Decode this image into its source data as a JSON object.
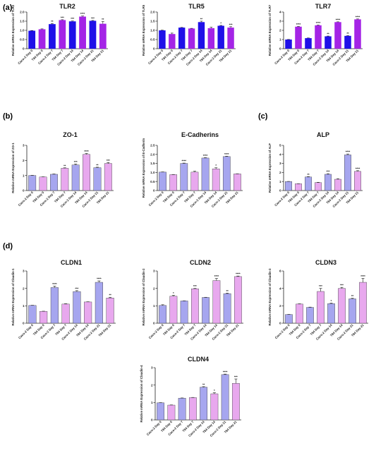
{
  "panel_labels": [
    "(a)",
    "(b)",
    "(c)",
    "(d)"
  ],
  "colors": {
    "tlr_caco": "#1f10e8",
    "tlr_t84": "#a424e6",
    "tj_caco": "#a6a6ef",
    "tj_t84": "#e8a8ee",
    "axis": "#222222"
  },
  "chart_data": [
    {
      "type": "bar",
      "panel": "(a)",
      "title": "TLR2",
      "ylabel": "Relative mRNA Expression of TLR2",
      "ylim": [
        0,
        2.0
      ],
      "yticks": [
        "0",
        "0.5",
        "1.0",
        "1.5",
        "2.0"
      ],
      "categories": [
        "Caco-2 Day 0",
        "T84 Day 0",
        "Caco-2 Day 7",
        "T84 Day 7",
        "Caco-2 Day 14",
        "T84 Day 14",
        "Caco-2 Day 21",
        "T84 Day 21"
      ],
      "values": [
        0.98,
        1.06,
        1.34,
        1.56,
        1.49,
        1.75,
        1.52,
        1.36
      ],
      "errors": [
        0.01,
        0.02,
        0.03,
        0.02,
        0.02,
        0.03,
        0.02,
        0.12
      ],
      "significance": [
        "",
        "",
        "**",
        "***",
        "***",
        "****",
        "***",
        "**"
      ],
      "palette": "tlr"
    },
    {
      "type": "bar",
      "panel": "(a)",
      "title": "TLR5",
      "ylabel": "Relative mRNA Expression of TLR5",
      "ylim": [
        0,
        2.0
      ],
      "yticks": [
        "0",
        "0.5",
        "1.0",
        "1.5",
        "2.0"
      ],
      "categories": [
        "Caco-2 Day 0",
        "T84 Day 0",
        "Caco-2 Day 7",
        "T84 Day 7",
        "Caco-2 Day 14",
        "T84 Day 14",
        "Caco-2 Day 21",
        "T84 Day 21"
      ],
      "values": [
        1.0,
        0.8,
        1.15,
        1.1,
        1.45,
        1.12,
        1.25,
        1.15
      ],
      "errors": [
        0.01,
        0.05,
        0.01,
        0.01,
        0.05,
        0.05,
        0.02,
        0.05
      ],
      "significance": [
        "",
        "",
        "",
        "",
        "**",
        "",
        "*",
        "***"
      ],
      "palette": "tlr"
    },
    {
      "type": "bar",
      "panel": "(a)",
      "title": "TLR7",
      "ylabel": "Relative mRNA Expression of TLR7",
      "ylim": [
        0,
        4
      ],
      "yticks": [
        "0",
        "1",
        "2",
        "3",
        "4"
      ],
      "categories": [
        "Caco-2 Day 0",
        "T84 Day 0",
        "Caco-2 Day 7",
        "T84 Day 7",
        "Caco-2 Day 14",
        "T84 Day 14",
        "Caco-2 Day 21",
        "T84 Day 21"
      ],
      "values": [
        1.0,
        2.4,
        1.15,
        2.55,
        1.35,
        2.9,
        1.4,
        3.2
      ],
      "errors": [
        0.01,
        0.03,
        0.02,
        0.03,
        0.03,
        0.03,
        0.03,
        0.04
      ],
      "significance": [
        "",
        "****",
        "",
        "****",
        "**",
        "****",
        "**",
        "****"
      ],
      "palette": "tlr"
    },
    {
      "type": "bar",
      "panel": "(b)",
      "title": "ZO-1",
      "ylabel": "Relative mRNA Expression of ZO-1",
      "ylim": [
        0,
        3
      ],
      "yticks": [
        "0",
        "1",
        "2",
        "3"
      ],
      "categories": [
        "Caco-2 Day 0",
        "T84 Day 0",
        "Caco-2 Day 7",
        "T84 Day 7",
        "Caco-2 Day 14",
        "T84 Day 14",
        "Caco-2 Day 21",
        "T84 Day 21"
      ],
      "values": [
        1.0,
        0.9,
        1.08,
        1.48,
        1.7,
        2.4,
        1.52,
        1.8
      ],
      "errors": [
        0.01,
        0.01,
        0.02,
        0.03,
        0.06,
        0.06,
        0.03,
        0.06
      ],
      "significance": [
        "",
        "",
        "",
        "**",
        "***",
        "****",
        "**",
        "***"
      ],
      "palette": "tj"
    },
    {
      "type": "bar",
      "panel": "(b)",
      "title": "E-Cadherins",
      "ylabel": "Relative mRNA Expression of E-Cadherin",
      "ylim": [
        0,
        2.5
      ],
      "yticks": [
        "0",
        "0.5",
        "1.0",
        "1.5",
        "2.0",
        "2.5"
      ],
      "categories": [
        "Caco-2 Day 0",
        "T84 Day 0",
        "Caco-2 Day 7",
        "T84 Day 7",
        "Caco-2 Day 14",
        "T84 Day 14",
        "Caco-2 Day 21",
        "T84 Day 21"
      ],
      "values": [
        1.02,
        0.88,
        1.5,
        1.02,
        1.8,
        1.2,
        1.88,
        0.92
      ],
      "errors": [
        0.01,
        0.01,
        0.02,
        0.05,
        0.02,
        0.06,
        0.02,
        0.01
      ],
      "significance": [
        "",
        "",
        "****",
        "",
        "****",
        "*",
        "****",
        ""
      ],
      "palette": "tj"
    },
    {
      "type": "bar",
      "panel": "(c)",
      "title": "ALP",
      "ylabel": "Relative mRNA Expression of ALP",
      "ylim": [
        0,
        5
      ],
      "yticks": [
        "0",
        "1",
        "2",
        "3",
        "4",
        "5"
      ],
      "categories": [
        "Caco-2 Day 0",
        "T84 Day 0",
        "Caco-2 Day 7",
        "T84 Day 7",
        "Caco-2 Day 14",
        "T84 Day 14",
        "Caco-2 Day 21",
        "T84 Day 21"
      ],
      "values": [
        1.0,
        0.75,
        1.5,
        0.88,
        1.8,
        1.25,
        3.95,
        2.12
      ],
      "errors": [
        0.01,
        0.01,
        0.04,
        0.03,
        0.06,
        0.06,
        0.1,
        0.08
      ],
      "significance": [
        "",
        "",
        "**",
        "",
        "***",
        "",
        "****",
        "****"
      ],
      "palette": "tj"
    },
    {
      "type": "bar",
      "panel": "(d)",
      "title": "CLDN1",
      "ylabel": "Relative mRNA Expression of Claudin-1",
      "ylim": [
        0,
        3
      ],
      "yticks": [
        "0",
        "1",
        "2",
        "3"
      ],
      "categories": [
        "Caco-2 Day 0",
        "T84 Day 0",
        "Caco-2 Day 7",
        "T84 Day 7",
        "Caco-2 Day 14",
        "T84 Day 14",
        "Caco-2 Day 21",
        "T84 Day 21"
      ],
      "values": [
        1.02,
        0.68,
        2.05,
        1.1,
        1.82,
        1.22,
        2.35,
        1.45
      ],
      "errors": [
        0.01,
        0.01,
        0.08,
        0.02,
        0.05,
        0.01,
        0.08,
        0.04
      ],
      "significance": [
        "",
        "",
        "****",
        "",
        "***",
        "",
        "****",
        "**"
      ],
      "palette": "tj"
    },
    {
      "type": "bar",
      "panel": "(d)",
      "title": "CLDN2",
      "ylabel": "Relative mRNA Expression of Claudin-2",
      "ylim": [
        0,
        3
      ],
      "yticks": [
        "0",
        "1",
        "2",
        "3"
      ],
      "categories": [
        "Caco-2 Day 0",
        "T84 Day 0",
        "Caco-2 Day 7",
        "T84 Day 7",
        "Caco-2 Day 14",
        "T84 Day 14",
        "Caco-2 Day 21",
        "T84 Day 21"
      ],
      "values": [
        1.02,
        1.55,
        1.28,
        1.98,
        1.48,
        2.45,
        1.7,
        2.68
      ],
      "errors": [
        0.04,
        0.05,
        0.01,
        0.02,
        0.01,
        0.12,
        0.03,
        0.03
      ],
      "significance": [
        "",
        "*",
        "",
        "***",
        "",
        "****",
        "**",
        "****"
      ],
      "palette": "tj"
    },
    {
      "type": "bar",
      "panel": "(d)",
      "title": "CLDN3",
      "ylabel": "Relative mRNA Expression of Claudin-3",
      "ylim": [
        0,
        6
      ],
      "yticks": [
        "0",
        "2",
        "4",
        "6"
      ],
      "categories": [
        "Caco-2 Day 0",
        "T84 Day 0",
        "Caco-2 Day 7",
        "T84 Day 7",
        "Caco-2 Day 14",
        "T84 Day 14",
        "Caco-2 Day 21",
        "T84 Day 21"
      ],
      "values": [
        1.0,
        2.2,
        1.82,
        3.65,
        2.25,
        4.0,
        2.8,
        4.7
      ],
      "errors": [
        0.01,
        0.03,
        0.03,
        0.35,
        0.06,
        0.12,
        0.06,
        0.45
      ],
      "significance": [
        "",
        "",
        "",
        "***",
        "*",
        "***",
        "**",
        "****"
      ],
      "palette": "tj"
    },
    {
      "type": "bar",
      "panel": "(d)",
      "title": "CLDN4",
      "ylabel": "Relative mRNA Expression of Claudin-4",
      "ylim": [
        0,
        3
      ],
      "yticks": [
        "0",
        "1",
        "2",
        "3"
      ],
      "categories": [
        "Caco-2 Day 0",
        "T84 Day 0",
        "Caco-2 Day 7",
        "T84 Day 7",
        "Caco-2 Day 14",
        "T84 Day 14",
        "Caco-2 Day 21",
        "T84 Day 21"
      ],
      "values": [
        0.98,
        0.85,
        1.25,
        1.28,
        1.88,
        1.5,
        2.6,
        2.1
      ],
      "errors": [
        0.01,
        0.01,
        0.01,
        0.01,
        0.03,
        0.06,
        0.03,
        0.25
      ],
      "significance": [
        "",
        "",
        "",
        "",
        "**",
        "*",
        "****",
        "***"
      ],
      "palette": "tj"
    }
  ]
}
